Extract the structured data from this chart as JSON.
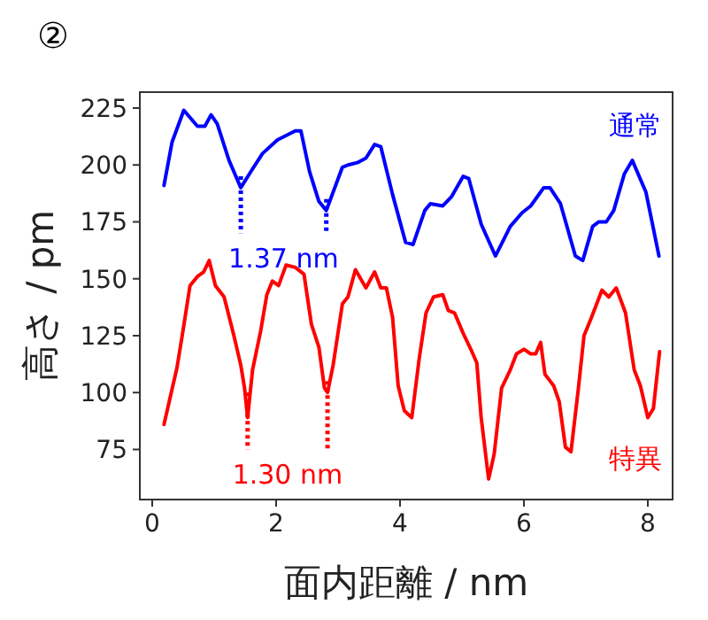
{
  "chart_data": {
    "type": "line",
    "title": "②",
    "xlabel": "面内距離 / nm",
    "ylabel": "高さ / pm",
    "xlim": [
      -0.2,
      8.4
    ],
    "ylim": [
      53,
      232
    ],
    "xticks": [
      0,
      2,
      4,
      6,
      8
    ],
    "yticks": [
      75,
      100,
      125,
      150,
      175,
      200,
      225
    ],
    "grid": false,
    "line_style": "solid",
    "marker": "none",
    "series": [
      {
        "name": "通常",
        "color": "#0000ff",
        "x": [
          0.19,
          0.32,
          0.51,
          0.73,
          0.85,
          0.95,
          1.05,
          1.24,
          1.43,
          1.59,
          1.78,
          2.02,
          2.31,
          2.4,
          2.54,
          2.69,
          2.81,
          2.92,
          3.07,
          3.16,
          3.31,
          3.45,
          3.59,
          3.69,
          3.88,
          4.09,
          4.21,
          4.4,
          4.49,
          4.69,
          4.83,
          5.02,
          5.11,
          5.31,
          5.54,
          5.78,
          5.97,
          6.11,
          6.32,
          6.42,
          6.59,
          6.83,
          6.95,
          7.11,
          7.21,
          7.33,
          7.45,
          7.62,
          7.75,
          7.97,
          8.18
        ],
        "values": [
          191,
          210,
          224,
          217,
          217,
          222,
          218,
          202,
          190,
          197,
          205,
          211,
          215,
          215,
          197,
          184,
          180,
          188,
          199,
          200,
          201,
          203,
          209,
          208,
          187,
          166,
          165,
          180,
          183,
          182,
          186,
          195,
          194,
          174,
          160,
          173,
          179,
          182,
          190,
          190,
          183,
          160,
          158,
          173,
          175,
          175,
          180,
          196,
          202,
          188,
          160
        ]
      },
      {
        "name": "特異",
        "color": "#ff0000",
        "x": [
          0.19,
          0.4,
          0.49,
          0.61,
          0.73,
          0.83,
          0.92,
          1.02,
          1.16,
          1.31,
          1.43,
          1.49,
          1.54,
          1.62,
          1.75,
          1.85,
          1.94,
          2.04,
          2.16,
          2.31,
          2.45,
          2.57,
          2.69,
          2.78,
          2.83,
          2.92,
          3.07,
          3.16,
          3.28,
          3.45,
          3.59,
          3.69,
          3.78,
          3.88,
          3.97,
          4.07,
          4.19,
          4.31,
          4.42,
          4.54,
          4.69,
          4.78,
          4.88,
          5.02,
          5.16,
          5.24,
          5.31,
          5.43,
          5.52,
          5.64,
          5.78,
          5.88,
          6.0,
          6.11,
          6.19,
          6.27,
          6.34,
          6.48,
          6.57,
          6.67,
          6.76,
          6.88,
          6.97,
          7.09,
          7.26,
          7.37,
          7.49,
          7.64,
          7.78,
          7.88,
          8.0,
          8.09,
          8.19
        ],
        "values": [
          86,
          111,
          126,
          147,
          151,
          153,
          158,
          147,
          142,
          126,
          112,
          102,
          89,
          110,
          127,
          143,
          149,
          147,
          156,
          155,
          152,
          130,
          120,
          102,
          100,
          112,
          139,
          142,
          154,
          146,
          153,
          146,
          146,
          133,
          103,
          92,
          89,
          115,
          135,
          142,
          143,
          136,
          135,
          126,
          118,
          113,
          89,
          62,
          73,
          102,
          110,
          117,
          119,
          117,
          117,
          122,
          108,
          103,
          96,
          76,
          74,
          102,
          125,
          133,
          145,
          142,
          146,
          135,
          110,
          103,
          89,
          93,
          118
        ]
      },
      {
        "color": "#0000ff",
        "line_style": "dotted",
        "x": [
          1.43,
          1.43
        ],
        "values": [
          195,
          170
        ]
      },
      {
        "color": "#0000ff",
        "line_style": "dotted",
        "x": [
          2.81,
          2.81
        ],
        "values": [
          185,
          170
        ]
      },
      {
        "color": "#ff0000",
        "line_style": "dotted",
        "x": [
          1.54,
          1.54
        ],
        "values": [
          100,
          75
        ]
      },
      {
        "color": "#ff0000",
        "line_style": "dotted",
        "x": [
          2.83,
          2.83
        ],
        "values": [
          105,
          75
        ]
      }
    ],
    "annotations": [
      "1.37 nm",
      "1.30 nm"
    ]
  }
}
